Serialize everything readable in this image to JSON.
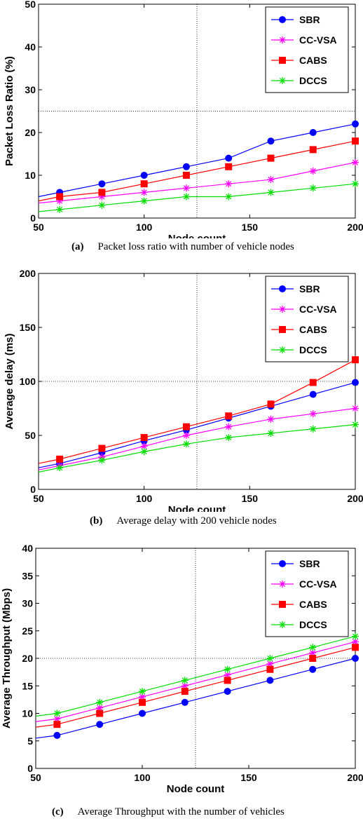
{
  "chart_data": [
    {
      "type": "line",
      "xlabel": "Node count",
      "ylabel": "Packet Loss Ratio (%)",
      "xlim": [
        50,
        200
      ],
      "ylim": [
        0,
        50
      ],
      "xticks": [
        50,
        100,
        150,
        200
      ],
      "yticks": [
        0,
        10,
        20,
        30,
        40,
        50
      ],
      "grid": "center-lines",
      "legend": "top-right",
      "caption_label": "(a)",
      "caption_text": "Packet loss ratio with number of vehicle nodes",
      "series": [
        {
          "name": "SBR",
          "color": "#0000ff",
          "marker": "circle",
          "x": [
            50,
            60,
            80,
            100,
            120,
            140,
            160,
            180,
            200
          ],
          "y": [
            5,
            6,
            8,
            10,
            12,
            14,
            18,
            20,
            22
          ]
        },
        {
          "name": "CC-VSA",
          "color": "#ff00ff",
          "marker": "star",
          "x": [
            50,
            60,
            80,
            100,
            120,
            140,
            160,
            180,
            200
          ],
          "y": [
            3.5,
            4,
            5,
            6,
            7,
            8,
            9,
            11,
            13
          ]
        },
        {
          "name": "CABS",
          "color": "#ff0000",
          "marker": "square",
          "x": [
            50,
            60,
            80,
            100,
            120,
            140,
            160,
            180,
            200
          ],
          "y": [
            4,
            5,
            6,
            8,
            10,
            12,
            14,
            16,
            18
          ]
        },
        {
          "name": "DCCS",
          "color": "#00dd00",
          "marker": "star",
          "x": [
            50,
            60,
            80,
            100,
            120,
            140,
            160,
            180,
            200
          ],
          "y": [
            1.5,
            2,
            3,
            4,
            5,
            5,
            6,
            7,
            8
          ]
        }
      ]
    },
    {
      "type": "line",
      "xlabel": "Node count",
      "ylabel": "Average delay (ms)",
      "xlim": [
        50,
        200
      ],
      "ylim": [
        0,
        200
      ],
      "xticks": [
        50,
        100,
        150,
        200
      ],
      "yticks": [
        0,
        50,
        100,
        150,
        200
      ],
      "grid": "center-lines",
      "legend": "top-right",
      "caption_label": "(b)",
      "caption_text": "Average delay with 200 vehicle nodes",
      "series": [
        {
          "name": "SBR",
          "color": "#0000ff",
          "marker": "circle",
          "x": [
            50,
            60,
            80,
            100,
            120,
            140,
            160,
            180,
            200
          ],
          "y": [
            20,
            24,
            34,
            45,
            55,
            66,
            77,
            88,
            99
          ]
        },
        {
          "name": "CC-VSA",
          "color": "#ff00ff",
          "marker": "star",
          "x": [
            50,
            60,
            80,
            100,
            120,
            140,
            160,
            180,
            200
          ],
          "y": [
            18,
            22,
            30,
            40,
            50,
            58,
            65,
            70,
            75
          ]
        },
        {
          "name": "CABS",
          "color": "#ff0000",
          "marker": "square",
          "x": [
            50,
            60,
            80,
            100,
            120,
            140,
            160,
            180,
            200
          ],
          "y": [
            24,
            28,
            38,
            48,
            58,
            68,
            79,
            99,
            120
          ]
        },
        {
          "name": "DCCS",
          "color": "#00dd00",
          "marker": "star",
          "x": [
            50,
            60,
            80,
            100,
            120,
            140,
            160,
            180,
            200
          ],
          "y": [
            16,
            20,
            27,
            35,
            42,
            48,
            52,
            56,
            60
          ]
        }
      ]
    },
    {
      "type": "line",
      "xlabel": "Node count",
      "ylabel": "Average Throughput (Mbps)",
      "xlim": [
        50,
        200
      ],
      "ylim": [
        0,
        40
      ],
      "xticks": [
        50,
        100,
        150,
        200
      ],
      "yticks": [
        0,
        5,
        10,
        15,
        20,
        25,
        30,
        35,
        40
      ],
      "grid": "center-lines",
      "legend": "top-right",
      "caption_label": "(c)",
      "caption_text": "Average Throughput with the number of vehicles",
      "series": [
        {
          "name": "SBR",
          "color": "#0000ff",
          "marker": "circle",
          "x": [
            50,
            60,
            80,
            100,
            120,
            140,
            160,
            180,
            200
          ],
          "y": [
            5.5,
            6,
            8,
            10,
            12,
            14,
            16,
            18,
            20
          ]
        },
        {
          "name": "CC-VSA",
          "color": "#ff00ff",
          "marker": "star",
          "x": [
            50,
            60,
            80,
            100,
            120,
            140,
            160,
            180,
            200
          ],
          "y": [
            8.5,
            9,
            11,
            13,
            15,
            17,
            19,
            21,
            23
          ]
        },
        {
          "name": "CABS",
          "color": "#ff0000",
          "marker": "square",
          "x": [
            50,
            60,
            80,
            100,
            120,
            140,
            160,
            180,
            200
          ],
          "y": [
            7.5,
            8,
            10,
            12,
            14,
            16,
            18,
            20,
            22
          ]
        },
        {
          "name": "DCCS",
          "color": "#00dd00",
          "marker": "star",
          "x": [
            50,
            60,
            80,
            100,
            120,
            140,
            160,
            180,
            200
          ],
          "y": [
            9.5,
            10,
            12,
            14,
            16,
            18,
            20,
            22,
            24
          ]
        }
      ]
    }
  ]
}
